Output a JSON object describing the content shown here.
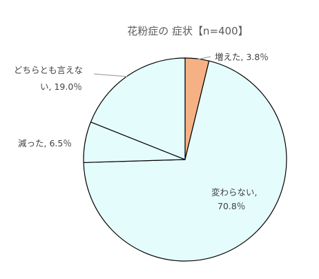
{
  "chart_data": {
    "type": "pie",
    "title": "花粉症の 症状【n=400】",
    "slices": [
      {
        "label": "増えた",
        "value": 3.8,
        "display_value": "3.8％",
        "color": "#f5b183"
      },
      {
        "label": "変わらない",
        "value": 70.8,
        "display_value": "70.8％",
        "color": "#e5fcfd"
      },
      {
        "label": "減った",
        "value": 6.5,
        "display_value": "6.5％",
        "color": "#e5fcfd"
      },
      {
        "label": "どちらとも言えない",
        "value": 19.0,
        "display_value": "19.0％",
        "color": "#e5fcfd"
      }
    ],
    "label_text": {
      "inc": "増えた, 3.8％",
      "same_1": "変わらない,",
      "same_2": "70.8％",
      "dec": "減った, 6.5％",
      "nei_1": "どちらとも言えな",
      "nei_2": "い, 19.0％"
    },
    "legend": "none",
    "start_angle": "12 o'clock, clockwise",
    "edge_color": "#000000"
  }
}
